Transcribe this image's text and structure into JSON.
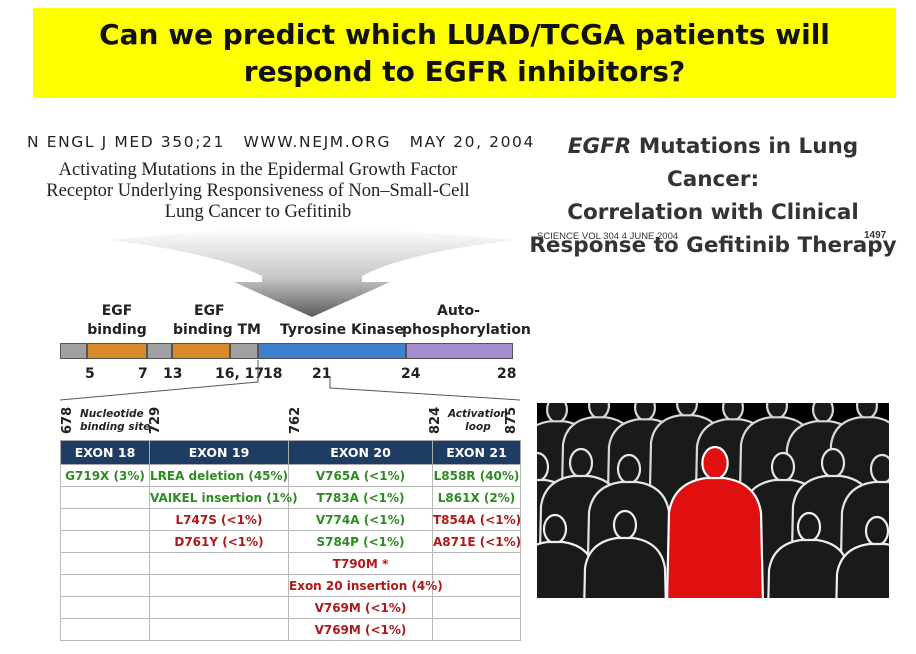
{
  "title": {
    "line1": "Can we predict which LUAD/TCGA patients will",
    "line2": "respond to EGFR inhibitors?"
  },
  "nejm": {
    "journal": "N ENGL J MED 350;21",
    "site": "WWW.NEJM.ORG",
    "date": "MAY 20, 2004",
    "title_line1": "Activating Mutations in the Epidermal Growth Factor",
    "title_line2": "Receptor Underlying Responsiveness of Non–Small-Cell",
    "title_line3": "Lung Cancer to Gefitinib"
  },
  "science": {
    "title_gene": "EGFR",
    "title_line1_rest": " Mutations in Lung Cancer:",
    "title_line2": "Correlation with Clinical",
    "title_line3": "Response to Gefitinib Therapy",
    "meta": "SCIENCE   VOL 304   4 JUNE 2004",
    "page": "1497"
  },
  "gene_diagram": {
    "domains": {
      "egf_binding_1": "EGF",
      "egf_binding_2": "binding",
      "egf_tm_1": "EGF",
      "egf_tm_2": "binding TM",
      "tk": "Tyrosine Kinase",
      "auto_1": "Auto-",
      "auto_2": "phosphorylation"
    },
    "segment_colors": {
      "gray": "#a0a0a0",
      "orange": "#d98a2b",
      "blue": "#3f7fd0",
      "purple": "#a48dd0"
    },
    "exon_numbers": [
      "5",
      "7",
      "13",
      "16, 17",
      "18",
      "21",
      "24",
      "28"
    ],
    "positions": [
      "678",
      "729",
      "762",
      "824",
      "875"
    ],
    "site_nucleotide_1": "Nucleotide",
    "site_nucleotide_2": "binding site",
    "site_activation_1": "Activation",
    "site_activation_2": "loop"
  },
  "mutation_table": {
    "header_color": "#1f3d63",
    "columns": [
      "EXON 18",
      "EXON 19",
      "EXON 20",
      "EXON 21"
    ],
    "rows": [
      [
        {
          "text": "G719X (3%)",
          "c": "green"
        },
        {
          "text": "LREA deletion (45%)",
          "c": "green"
        },
        {
          "text": "V765A (<1%)",
          "c": "green"
        },
        {
          "text": "L858R (40%)",
          "c": "green"
        }
      ],
      [
        {
          "text": "",
          "c": ""
        },
        {
          "text": "VAIKEL insertion (1%)",
          "c": "green"
        },
        {
          "text": "T783A (<1%)",
          "c": "green"
        },
        {
          "text": "L861X (2%)",
          "c": "green"
        }
      ],
      [
        {
          "text": "",
          "c": ""
        },
        {
          "text": "L747S (<1%)",
          "c": "red"
        },
        {
          "text": "V774A (<1%)",
          "c": "green"
        },
        {
          "text": "T854A (<1%)",
          "c": "red"
        }
      ],
      [
        {
          "text": "",
          "c": ""
        },
        {
          "text": "D761Y (<1%)",
          "c": "red"
        },
        {
          "text": "S784P (<1%)",
          "c": "green"
        },
        {
          "text": "A871E (<1%)",
          "c": "red"
        }
      ],
      [
        {
          "text": "",
          "c": ""
        },
        {
          "text": "",
          "c": ""
        },
        {
          "text": "T790M *",
          "c": "red"
        },
        {
          "text": "",
          "c": ""
        }
      ],
      [
        {
          "text": "",
          "c": ""
        },
        {
          "text": "",
          "c": ""
        },
        {
          "text": "Exon 20 insertion (4%)",
          "c": "red"
        },
        {
          "text": "",
          "c": ""
        }
      ],
      [
        {
          "text": "",
          "c": ""
        },
        {
          "text": "",
          "c": ""
        },
        {
          "text": "V769M (<1%)",
          "c": "red"
        },
        {
          "text": "",
          "c": ""
        }
      ],
      [
        {
          "text": "",
          "c": ""
        },
        {
          "text": "",
          "c": ""
        },
        {
          "text": "V769M (<1%)",
          "c": "red"
        },
        {
          "text": "",
          "c": ""
        }
      ]
    ]
  },
  "crowd_image": {
    "highlight_color": "#e01010",
    "figure_color": "#1a1a1a"
  }
}
